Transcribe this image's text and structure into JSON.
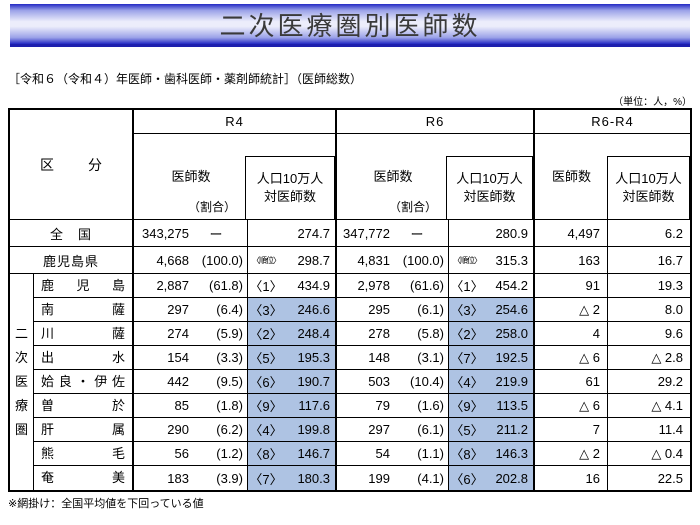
{
  "title": "二次医療圏別医師数",
  "subtitle": "［令和６（令和４）年医師・歯科医師・薬剤師統計］（医師総数）",
  "unit_note": "（単位：人，%）",
  "footnote": "※網掛け：全国平均値を下回っている値",
  "colors": {
    "accent_blue": "#2329c3",
    "shade": "#aec3e3"
  },
  "table": {
    "corner_label": "区分",
    "group_headers": [
      "R4",
      "R6",
      "R6-R4"
    ],
    "col_doctor": "医師数",
    "col_ratio": "（割合）",
    "col_per100k": "人口10万人\n対医師数",
    "side_label": "二次医療圏",
    "rows": [
      {
        "name": "全　国",
        "span": true,
        "r4": {
          "count": "343,275",
          "ratio": "ー",
          "rank": "",
          "value": "274.7",
          "shaded": false
        },
        "r6": {
          "count": "347,772",
          "ratio": "ー",
          "rank": "",
          "value": "280.9",
          "shaded": false
        },
        "diff": {
          "count": "4,497",
          "value": "6.2"
        }
      },
      {
        "name": "鹿児島県",
        "span": true,
        "r4": {
          "count": "4,668",
          "ratio": "(100.0)",
          "rank": "〈順位〉",
          "value": "298.7",
          "shaded": false
        },
        "r6": {
          "count": "4,831",
          "ratio": "(100.0)",
          "rank": "〈順位〉",
          "value": "315.3",
          "shaded": false
        },
        "diff": {
          "count": "163",
          "value": "16.7"
        }
      },
      {
        "name": "鹿児島",
        "span": false,
        "r4": {
          "count": "2,887",
          "ratio": "(61.8)",
          "rank": "〈1〉",
          "value": "434.9",
          "shaded": false
        },
        "r6": {
          "count": "2,978",
          "ratio": "(61.6)",
          "rank": "〈1〉",
          "value": "454.2",
          "shaded": false
        },
        "diff": {
          "count": "91",
          "value": "19.3"
        }
      },
      {
        "name": "南薩",
        "span": false,
        "r4": {
          "count": "297",
          "ratio": "(6.4)",
          "rank": "〈3〉",
          "value": "246.6",
          "shaded": true
        },
        "r6": {
          "count": "295",
          "ratio": "(6.1)",
          "rank": "〈3〉",
          "value": "254.6",
          "shaded": true
        },
        "diff": {
          "count": "△ 2",
          "value": "8.0"
        }
      },
      {
        "name": "川薩",
        "span": false,
        "r4": {
          "count": "274",
          "ratio": "(5.9)",
          "rank": "〈2〉",
          "value": "248.4",
          "shaded": true
        },
        "r6": {
          "count": "278",
          "ratio": "(5.8)",
          "rank": "〈2〉",
          "value": "258.0",
          "shaded": true
        },
        "diff": {
          "count": "4",
          "value": "9.6"
        }
      },
      {
        "name": "出水",
        "span": false,
        "r4": {
          "count": "154",
          "ratio": "(3.3)",
          "rank": "〈5〉",
          "value": "195.3",
          "shaded": true
        },
        "r6": {
          "count": "148",
          "ratio": "(3.1)",
          "rank": "〈7〉",
          "value": "192.5",
          "shaded": true
        },
        "diff": {
          "count": "△ 6",
          "value": "△ 2.8"
        }
      },
      {
        "name": "姶良・伊佐",
        "span": false,
        "r4": {
          "count": "442",
          "ratio": "(9.5)",
          "rank": "〈6〉",
          "value": "190.7",
          "shaded": true
        },
        "r6": {
          "count": "503",
          "ratio": "(10.4)",
          "rank": "〈4〉",
          "value": "219.9",
          "shaded": true
        },
        "diff": {
          "count": "61",
          "value": "29.2"
        }
      },
      {
        "name": "曽於",
        "span": false,
        "r4": {
          "count": "85",
          "ratio": "(1.8)",
          "rank": "〈9〉",
          "value": "117.6",
          "shaded": true
        },
        "r6": {
          "count": "79",
          "ratio": "(1.6)",
          "rank": "〈9〉",
          "value": "113.5",
          "shaded": true
        },
        "diff": {
          "count": "△ 6",
          "value": "△ 4.1"
        }
      },
      {
        "name": "肝属",
        "span": false,
        "r4": {
          "count": "290",
          "ratio": "(6.2)",
          "rank": "〈4〉",
          "value": "199.8",
          "shaded": true
        },
        "r6": {
          "count": "297",
          "ratio": "(6.1)",
          "rank": "〈5〉",
          "value": "211.2",
          "shaded": true
        },
        "diff": {
          "count": "7",
          "value": "11.4"
        }
      },
      {
        "name": "熊毛",
        "span": false,
        "r4": {
          "count": "56",
          "ratio": "(1.2)",
          "rank": "〈8〉",
          "value": "146.7",
          "shaded": true
        },
        "r6": {
          "count": "54",
          "ratio": "(1.1)",
          "rank": "〈8〉",
          "value": "146.3",
          "shaded": true
        },
        "diff": {
          "count": "△ 2",
          "value": "△ 0.4"
        }
      },
      {
        "name": "奄美",
        "span": false,
        "r4": {
          "count": "183",
          "ratio": "(3.9)",
          "rank": "〈7〉",
          "value": "180.3",
          "shaded": true
        },
        "r6": {
          "count": "199",
          "ratio": "(4.1)",
          "rank": "〈6〉",
          "value": "202.8",
          "shaded": true
        },
        "diff": {
          "count": "16",
          "value": "22.5"
        }
      }
    ]
  }
}
